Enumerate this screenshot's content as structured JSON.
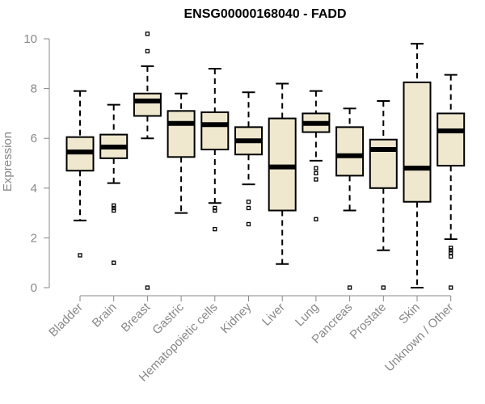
{
  "chart_data": {
    "type": "boxplot",
    "title": "ENSG00000168040 - FADD",
    "xlabel": "",
    "ylabel": "Expression",
    "ylim": [
      0,
      10
    ],
    "yticks": [
      0,
      2,
      4,
      6,
      8,
      10
    ],
    "categories": [
      "Bladder",
      "Brain",
      "Breast",
      "Gastric",
      "Hematopoietic cells",
      "Kidney",
      "Liver",
      "Lung",
      "Pancreas",
      "Prostate",
      "Skin",
      "Unknown / Other"
    ],
    "boxes": [
      {
        "name": "Bladder",
        "whisker_low": 2.7,
        "q1": 4.7,
        "median": 5.45,
        "q3": 6.05,
        "whisker_high": 7.9,
        "outliers": [
          1.3
        ]
      },
      {
        "name": "Brain",
        "whisker_low": 4.2,
        "q1": 5.2,
        "median": 5.65,
        "q3": 6.15,
        "whisker_high": 7.35,
        "outliers": [
          3.1,
          3.2,
          3.3,
          1.0
        ]
      },
      {
        "name": "Breast",
        "whisker_low": 6.0,
        "q1": 6.9,
        "median": 7.5,
        "q3": 7.8,
        "whisker_high": 8.9,
        "outliers": [
          9.5,
          10.2,
          0.0
        ]
      },
      {
        "name": "Gastric",
        "whisker_low": 3.0,
        "q1": 5.25,
        "median": 6.6,
        "q3": 7.1,
        "whisker_high": 7.8,
        "outliers": []
      },
      {
        "name": "Hematopoietic cells",
        "whisker_low": 3.4,
        "q1": 5.55,
        "median": 6.55,
        "q3": 7.05,
        "whisker_high": 8.8,
        "outliers": [
          3.1,
          3.2,
          2.35
        ]
      },
      {
        "name": "Kidney",
        "whisker_low": 4.15,
        "q1": 5.35,
        "median": 5.9,
        "q3": 6.45,
        "whisker_high": 7.85,
        "outliers": [
          3.45,
          3.2,
          2.55
        ]
      },
      {
        "name": "Liver",
        "whisker_low": 0.95,
        "q1": 3.1,
        "median": 4.85,
        "q3": 6.8,
        "whisker_high": 8.2,
        "outliers": []
      },
      {
        "name": "Lung",
        "whisker_low": 5.1,
        "q1": 6.25,
        "median": 6.6,
        "q3": 7.0,
        "whisker_high": 7.9,
        "outliers": [
          4.8,
          4.6,
          4.35,
          2.75
        ]
      },
      {
        "name": "Pancreas",
        "whisker_low": 3.1,
        "q1": 4.5,
        "median": 5.3,
        "q3": 6.45,
        "whisker_high": 7.2,
        "outliers": [
          0.0
        ]
      },
      {
        "name": "Prostate",
        "whisker_low": 1.5,
        "q1": 4.0,
        "median": 5.55,
        "q3": 5.95,
        "whisker_high": 7.5,
        "outliers": [
          0.0
        ]
      },
      {
        "name": "Skin",
        "whisker_low": 0.0,
        "q1": 3.45,
        "median": 4.8,
        "q3": 8.25,
        "whisker_high": 9.8,
        "outliers": []
      },
      {
        "name": "Unknown / Other",
        "whisker_low": 1.95,
        "q1": 4.9,
        "median": 6.3,
        "q3": 7.0,
        "whisker_high": 8.55,
        "outliers": [
          1.6,
          1.5,
          1.4,
          1.25,
          0.0
        ]
      }
    ],
    "colors": {
      "box_fill": "#efe8cf",
      "stroke": "#000000",
      "axis": "#888888"
    }
  }
}
